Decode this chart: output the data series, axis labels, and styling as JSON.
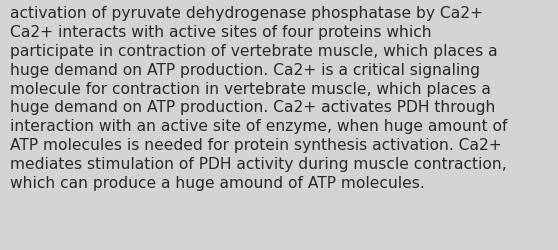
{
  "background_color": "#d4d4d4",
  "text_color": "#2a2a2a",
  "lines": [
    "activation of pyruvate dehydrogenase phosphatase by Ca2+",
    "Ca2+ interacts with active sites of four proteins which",
    "participate in contraction of vertebrate muscle, which places a",
    "huge demand on ATP production. Ca2+ is a critical signaling",
    "molecule for contraction in vertebrate muscle, which places a",
    "huge demand on ATP production. Ca2+ activates PDH through",
    "interaction with an active site of enzyme, when huge amount of",
    "ATP molecules is needed for protein synthesis activation. Ca2+",
    "mediates stimulation of PDH activity during muscle contraction,",
    "which can produce a huge amound of ATP molecules."
  ],
  "font_size": 11.2,
  "figwidth": 5.58,
  "figheight": 2.51,
  "dpi": 100
}
